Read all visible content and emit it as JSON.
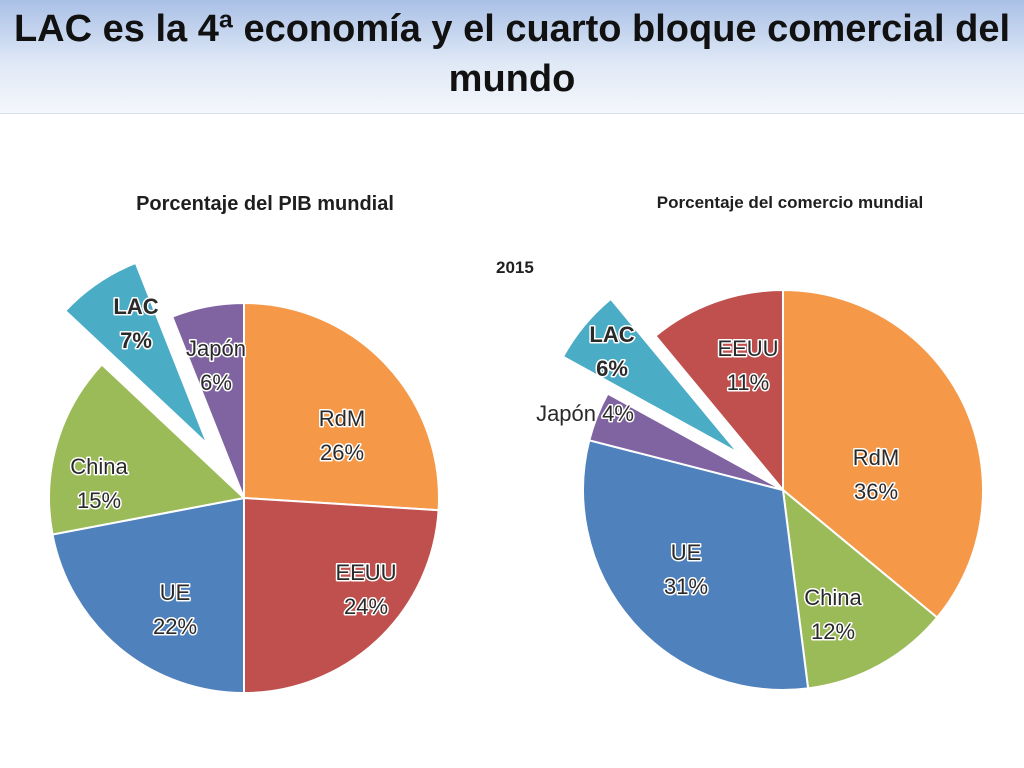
{
  "title": "LAC es la 4ª economía y el cuarto bloque comercial del mundo",
  "year": "2015",
  "colors": {
    "rdm": "#f59848",
    "eeuu": "#c0504d",
    "ue": "#4f81bd",
    "china": "#9bbb59",
    "lac": "#4bacc6",
    "japon": "#8064a2"
  },
  "chart_data": [
    {
      "type": "pie",
      "title": "Porcentaje del PIB mundial",
      "slices": [
        {
          "name": "RdM",
          "value": 26,
          "label": "26%",
          "color": "#f59848"
        },
        {
          "name": "EEUU",
          "value": 24,
          "label": "24%",
          "color": "#c0504d"
        },
        {
          "name": "UE",
          "value": 22,
          "label": "22%",
          "color": "#4f81bd"
        },
        {
          "name": "China",
          "value": 15,
          "label": "15%",
          "color": "#9bbb59"
        },
        {
          "name": "LAC",
          "value": 7,
          "label": "7%",
          "color": "#4bacc6",
          "exploded": true
        },
        {
          "name": "Japón",
          "value": 6,
          "label": "6%",
          "color": "#8064a2"
        }
      ]
    },
    {
      "type": "pie",
      "title": "Porcentaje del comercio mundial",
      "slices": [
        {
          "name": "RdM",
          "value": 36,
          "label": "36%",
          "color": "#f59848"
        },
        {
          "name": "China",
          "value": 12,
          "label": "12%",
          "color": "#9bbb59"
        },
        {
          "name": "UE",
          "value": 31,
          "label": "31%",
          "color": "#4f81bd"
        },
        {
          "name": "Japón",
          "value": 4,
          "label": "4%",
          "color": "#8064a2"
        },
        {
          "name": "LAC",
          "value": 6,
          "label": "6%",
          "color": "#4bacc6",
          "exploded": true
        },
        {
          "name": "EEUU",
          "value": 11,
          "label": "11%",
          "color": "#c0504d"
        }
      ]
    }
  ]
}
